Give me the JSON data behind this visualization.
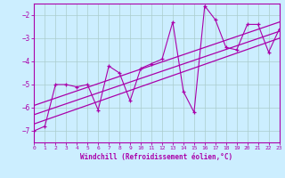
{
  "xlabel": "Windchill (Refroidissement éolien,°C)",
  "ylabel": "",
  "xlim": [
    0,
    23
  ],
  "ylim": [
    -7.5,
    -1.5
  ],
  "yticks": [
    -7,
    -6,
    -5,
    -4,
    -3,
    -2
  ],
  "xticks": [
    0,
    1,
    2,
    3,
    4,
    5,
    6,
    7,
    8,
    9,
    10,
    11,
    12,
    13,
    14,
    15,
    16,
    17,
    18,
    19,
    20,
    21,
    22,
    23
  ],
  "bg_color": "#cceeff",
  "grid_color": "#aacccc",
  "line_color": "#aa00aa",
  "x_data": [
    0,
    1,
    2,
    3,
    4,
    5,
    6,
    7,
    8,
    9,
    10,
    11,
    12,
    13,
    14,
    15,
    16,
    17,
    18,
    19,
    20,
    21,
    22,
    23
  ],
  "y_data": [
    -7.0,
    -6.8,
    -5.0,
    -5.0,
    -5.1,
    -5.0,
    -6.1,
    -4.2,
    -4.5,
    -5.7,
    -4.3,
    -4.1,
    -3.9,
    -2.3,
    -5.3,
    -6.2,
    -1.6,
    -2.2,
    -3.4,
    -3.5,
    -2.4,
    -2.4,
    -3.6,
    -2.6
  ],
  "trend1_x": [
    0,
    23
  ],
  "trend1_y": [
    -6.7,
    -3.0
  ],
  "trend2_x": [
    0,
    23
  ],
  "trend2_y": [
    -6.3,
    -2.7
  ],
  "trend3_x": [
    0,
    23
  ],
  "trend3_y": [
    -5.9,
    -2.3
  ]
}
